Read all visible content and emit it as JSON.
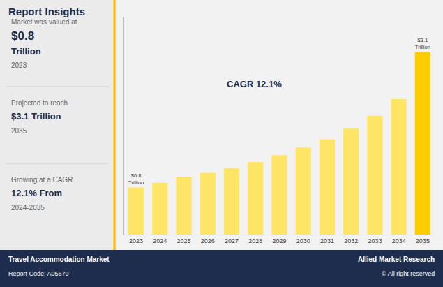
{
  "chart_data": {
    "type": "bar",
    "title": "Report Insights",
    "categories": [
      "2023",
      "2024",
      "2025",
      "2026",
      "2027",
      "2028",
      "2029",
      "2030",
      "2031",
      "2032",
      "2033",
      "2034",
      "2035"
    ],
    "values": [
      0.8,
      0.88,
      0.98,
      1.05,
      1.13,
      1.23,
      1.35,
      1.48,
      1.62,
      1.8,
      2.02,
      2.3,
      3.1
    ],
    "value_labels": [
      "$0.8\nTrillion",
      null,
      null,
      null,
      null,
      null,
      null,
      null,
      null,
      null,
      null,
      null,
      "$3.1\nTrillion"
    ],
    "data_labels": true,
    "colors": [
      "#FFE566",
      "#FFE566",
      "#FFE566",
      "#FFE566",
      "#FFE566",
      "#FFE566",
      "#FFE566",
      "#FFE566",
      "#FFE566",
      "#FFE566",
      "#FFE566",
      "#FFE566",
      "#FFCC00"
    ],
    "ylim": [
      0,
      3.7
    ],
    "yticks": [],
    "tick_labels": "x",
    "grid": false,
    "annotations": [
      "CAGR 12.1%",
      "Market was valued at",
      "$0.8",
      "Trillion",
      "2023",
      "Projected to reach",
      "$3.1 Trillion",
      "2035",
      "Growing at a CAGR",
      "12.1% From",
      "2024-2035",
      "Travel Accommodation Market",
      "Report Code: A05679",
      "Allied Market Research",
      "© All right reserved"
    ]
  }
}
